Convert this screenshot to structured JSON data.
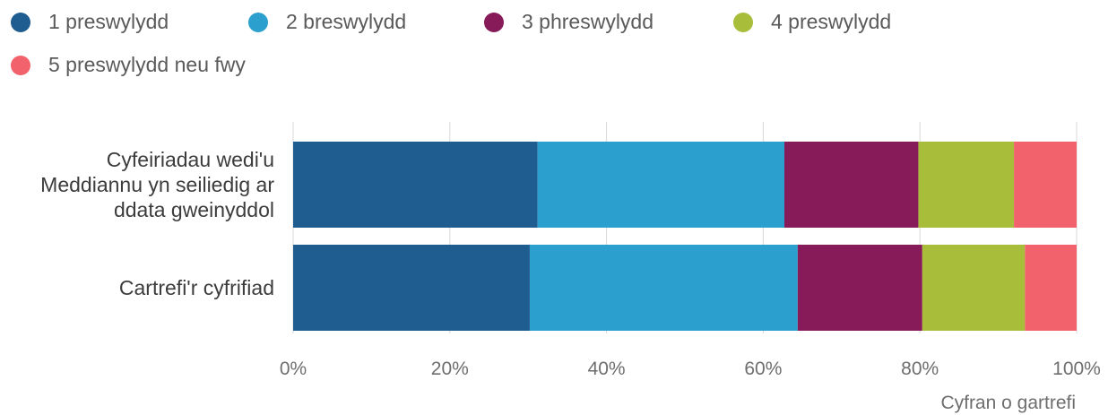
{
  "chart_data": {
    "type": "bar",
    "orientation": "horizontal",
    "stacked": true,
    "categories": [
      "Cyfeiriadau wedi'u Meddiannu yn seiliedig ar ddata gweinyddol",
      "Cartrefi'r cyfrifiad"
    ],
    "category_lines": [
      [
        "Cyfeiriadau wedi'u",
        "Meddiannu yn seiliedig ar",
        "ddata gweinyddol"
      ],
      [
        "Cartrefi'r cyfrifiad"
      ]
    ],
    "series": [
      {
        "name": "1 preswylydd",
        "color": "#1f5c8f",
        "values": [
          31.2,
          30.2
        ]
      },
      {
        "name": "2 breswylydd",
        "color": "#2ba0cf",
        "values": [
          31.5,
          34.2
        ]
      },
      {
        "name": "3 phreswylydd",
        "color": "#871a59",
        "values": [
          17.1,
          15.9
        ]
      },
      {
        "name": "4 preswylydd",
        "color": "#a8bd3a",
        "values": [
          12.2,
          13.1
        ]
      },
      {
        "name": "5 preswylydd neu fwy",
        "color": "#f2626c",
        "values": [
          8.0,
          6.6
        ]
      }
    ],
    "xlim": [
      0,
      100
    ],
    "xticks": [
      0,
      20,
      40,
      60,
      80,
      100
    ],
    "xtick_labels": [
      "0%",
      "20%",
      "40%",
      "60%",
      "80%",
      "100%"
    ],
    "xlabel": "Cyfran o gartrefi",
    "grid": true,
    "legend_position": "top-left"
  }
}
